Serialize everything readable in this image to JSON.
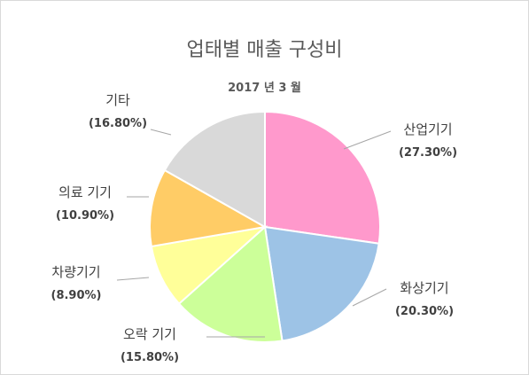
{
  "chart_data": {
    "type": "pie",
    "title": "업태별 매출 구성비",
    "subtitle": "2017 년 3 월",
    "categories": [
      "산업기기",
      "화상기기",
      "오락 기기",
      "차량기기",
      "의료 기기",
      "기타"
    ],
    "values": [
      27.3,
      20.3,
      15.8,
      8.9,
      10.9,
      16.8
    ],
    "value_labels": [
      "(27.30%)",
      "(20.30%)",
      "(15.80%)",
      "(8.90%)",
      "(10.90%)",
      "(16.80%)"
    ],
    "colors": [
      "#ff99cc",
      "#9dc3e6",
      "#ccff99",
      "#ffff99",
      "#ffcc66",
      "#d9d9d9"
    ],
    "start_angle_deg": 0,
    "direction": "clockwise",
    "legend": "none"
  }
}
